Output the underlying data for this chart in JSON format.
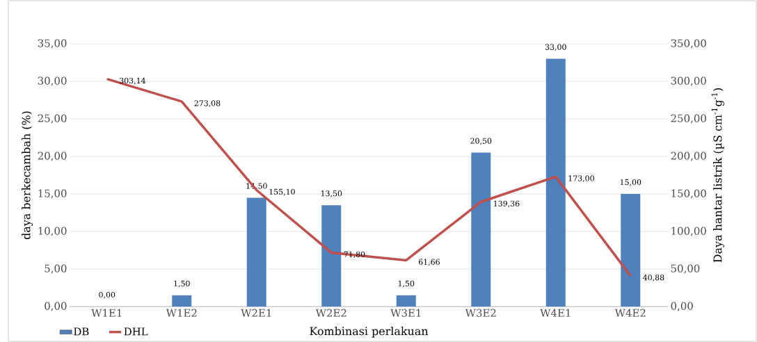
{
  "chart_data": {
    "type": "bar",
    "categories": [
      "W1E1",
      "W1E2",
      "W2E1",
      "W2E2",
      "W3E1",
      "W3E2",
      "W4E1",
      "W4E2"
    ],
    "series": [
      {
        "name": "DB",
        "color": "#4f81bd",
        "values": [
          0,
          1.5,
          14.5,
          13.5,
          1.5,
          20.5,
          33,
          15
        ],
        "value_labels": [
          "0,00",
          "1,50",
          "14,50",
          "13,50",
          "1,50",
          "20,50",
          "33,00",
          "15,00"
        ]
      },
      {
        "name": "DHL",
        "type": "line",
        "axis": "y2",
        "color": "#c0504d",
        "values": [
          303.14,
          273.08,
          155.1,
          71.8,
          61.66,
          139.36,
          173.0,
          40.88
        ],
        "value_labels": [
          "303,14",
          "273,08",
          "155,10",
          "71,80",
          "61,66",
          "139,36",
          "173,00",
          "40,88"
        ]
      }
    ],
    "xlabel": "Kombinasi perlakuan",
    "ylabel": "daya berkecambah (%)",
    "y2label": "Daya hantar listrik (µS cm$^{-1}$g$^{-1}$)",
    "ylim": [
      0,
      35
    ],
    "yticks": [
      {
        "value": 0,
        "label": "0,00"
      },
      {
        "value": 5,
        "label": "5,00"
      },
      {
        "value": 10,
        "label": "10,00"
      },
      {
        "value": 15,
        "label": "15,00"
      },
      {
        "value": 20,
        "label": "20,00"
      },
      {
        "value": 25,
        "label": "25,00"
      },
      {
        "value": 30,
        "label": "30,00"
      },
      {
        "value": 35,
        "label": "35,00"
      }
    ],
    "y2lim": [
      0,
      350
    ],
    "y2ticks": [
      {
        "value": 0,
        "label": "0,00"
      },
      {
        "value": 50,
        "label": "50,00"
      },
      {
        "value": 100,
        "label": "100,00"
      },
      {
        "value": 150,
        "label": "150,00"
      },
      {
        "value": 200,
        "label": "200,00"
      },
      {
        "value": 250,
        "label": "250,00"
      },
      {
        "value": 300,
        "label": "300,00"
      },
      {
        "value": 350,
        "label": "350,00"
      }
    ],
    "grid": "y",
    "legend": "bottom"
  }
}
